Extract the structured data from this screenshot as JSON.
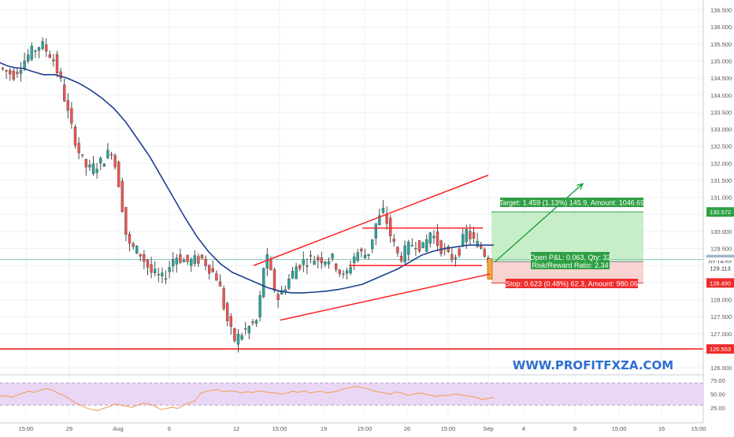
{
  "watermark": "WWW.PROFITFXZA.COM",
  "colors": {
    "up": "#26a69a",
    "down": "#ef5350",
    "wick": "#4a4a4a",
    "ma": "#1e3f8f",
    "trend": "#ff1f1f",
    "target_zone": "#c8eec9",
    "stop_zone": "#f9d2d2",
    "target_tag": "#2ea043",
    "stop_tag": "#ef2b2b",
    "rsi_band": "#ead7f5",
    "rsi_line": "#f0a35a",
    "grid": "#eef1f5"
  },
  "chart_data": [
    {
      "type": "candlestick",
      "title": "",
      "price_ticks": [
        "136.500",
        "136.000",
        "135.500",
        "135.000",
        "134.500",
        "134.000",
        "133.500",
        "133.000",
        "132.500",
        "132.000",
        "131.500",
        "131.000",
        "130.500",
        "130.000",
        "129.500",
        "129.000",
        "128.500",
        "128.000",
        "127.500",
        "127.000",
        "126.500",
        "126.000"
      ],
      "x_ticks": [
        "15:00",
        "29",
        "Aug",
        "6",
        "12",
        "15:00",
        "19",
        "15:00",
        "26",
        "15:00",
        "Sep",
        "4",
        "9",
        "15:00",
        "16",
        "15:00"
      ],
      "ylim": [
        125.9,
        136.7
      ],
      "price_tags": [
        {
          "label": "130.572",
          "value": 130.572,
          "color": "#2ea043"
        },
        {
          "label": "129.176",
          "value": 129.176,
          "color": "#9bb7c9",
          "text_color": "#333333"
        },
        {
          "label": "02:19:07",
          "value": 129.1,
          "color": "#ffffff",
          "text_color": "#333333"
        },
        {
          "label": "129.113",
          "value": 128.93,
          "color": "#ffffff",
          "text_color": "#333333"
        },
        {
          "label": "128.490",
          "value": 128.49,
          "color": "#ef2b2b"
        },
        {
          "label": "126.553",
          "value": 126.553,
          "color": "#ef2b2b"
        }
      ],
      "horizontal_levels": [
        {
          "name": "support",
          "value": 126.553
        },
        {
          "name": "current",
          "value": 129.176
        }
      ],
      "moving_average": [
        [
          0,
          134.95
        ],
        [
          10,
          134.85
        ],
        [
          20,
          134.8
        ],
        [
          30,
          134.78
        ],
        [
          40,
          134.7
        ],
        [
          55,
          134.6
        ],
        [
          70,
          134.6
        ],
        [
          85,
          134.5
        ],
        [
          100,
          134.35
        ],
        [
          115,
          134.15
        ],
        [
          130,
          133.9
        ],
        [
          145,
          133.6
        ],
        [
          160,
          133.2
        ],
        [
          175,
          132.7
        ],
        [
          190,
          132.2
        ],
        [
          205,
          131.6
        ],
        [
          220,
          131.0
        ],
        [
          235,
          130.4
        ],
        [
          250,
          129.85
        ],
        [
          265,
          129.4
        ],
        [
          280,
          129.05
        ],
        [
          295,
          128.8
        ],
        [
          310,
          128.65
        ],
        [
          325,
          128.5
        ],
        [
          340,
          128.35
        ],
        [
          355,
          128.25
        ],
        [
          370,
          128.2
        ],
        [
          385,
          128.2
        ],
        [
          400,
          128.22
        ],
        [
          415,
          128.25
        ],
        [
          430,
          128.3
        ],
        [
          445,
          128.37
        ],
        [
          460,
          128.45
        ],
        [
          475,
          128.6
        ],
        [
          490,
          128.75
        ],
        [
          505,
          128.9
        ],
        [
          520,
          129.1
        ],
        [
          535,
          129.3
        ],
        [
          550,
          129.42
        ],
        [
          565,
          129.5
        ],
        [
          580,
          129.55
        ],
        [
          595,
          129.6
        ],
        [
          610,
          129.6
        ],
        [
          627,
          129.6
        ]
      ],
      "trendlines": [
        {
          "name": "channel-upper",
          "from": [
            322,
            129.0
          ],
          "to": [
            620,
            131.65
          ]
        },
        {
          "name": "channel-lower",
          "from": [
            356,
            127.4
          ],
          "to": [
            622,
            128.75
          ]
        },
        {
          "name": "range-top",
          "from": [
            460,
            130.1
          ],
          "to": [
            613,
            130.1
          ]
        },
        {
          "name": "range-bottom",
          "from": [
            443,
            129.0
          ],
          "to": [
            612,
            129.0
          ]
        }
      ],
      "position": {
        "target_label": "Target: 1.459 (1.13%) 145.9, Amount: 1046.69",
        "stop_label": "Stop: 0.623 (0.48%) 62.3, Amount: 980.06",
        "open_label": "Open P&L: 0.063, Qty: 32",
        "rr_label": "Risk/Reward Ratio: 2.34",
        "entry": 129.113,
        "target": 130.572,
        "stop": 128.49
      },
      "projection_arrow": {
        "from": [
          628,
          129.1
        ],
        "to": [
          740,
          131.4
        ]
      }
    },
    {
      "type": "line",
      "name": "RSI",
      "y_ticks": [
        "75.00",
        "50.00",
        "25.00"
      ],
      "ylim": [
        0,
        100
      ],
      "band": [
        30,
        70
      ],
      "values": [
        46,
        47,
        44,
        48,
        52,
        55,
        53,
        57,
        60,
        58,
        52,
        48,
        42,
        35,
        30,
        25,
        22,
        20,
        24,
        27,
        32,
        30,
        28,
        26,
        30,
        34,
        32,
        28,
        22,
        24,
        26,
        24,
        30,
        34,
        38,
        52,
        55,
        57,
        58,
        54,
        56,
        55,
        52,
        54,
        53,
        56,
        54,
        53,
        52,
        50,
        52,
        55,
        53,
        56,
        52,
        54,
        55,
        52,
        54,
        56,
        60,
        62,
        64,
        62,
        60,
        56,
        54,
        52,
        50,
        54,
        52,
        48,
        50,
        52,
        50,
        48,
        46,
        48,
        47,
        50,
        49,
        47,
        46,
        44,
        40,
        42,
        44
      ]
    }
  ]
}
